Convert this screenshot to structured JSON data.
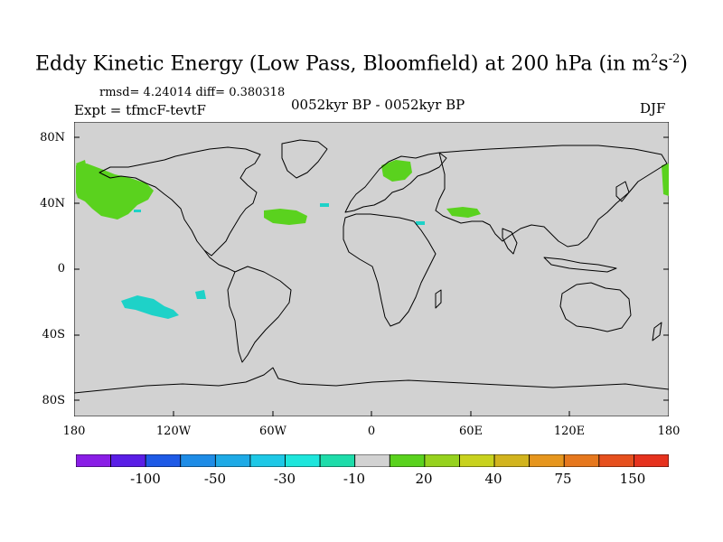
{
  "title": "Eddy Kinetic Energy (Low Pass, Bloomfield) at 200 hPa (in m",
  "title_sup1": "2",
  "title_mid": "s",
  "title_sup2": "-2",
  "title_end": ")",
  "stats": "rmsd= 4.24014  diff= 0.380318",
  "experiment": "Expt = tfmcF-tevtF",
  "period": "0052kyr BP - 0052kyr BP",
  "season": "DJF",
  "lat_labels": [
    "80N",
    "40N",
    "0",
    "40S",
    "80S"
  ],
  "lon_labels": [
    "180",
    "120W",
    "60W",
    "0",
    "60E",
    "120E",
    "180"
  ],
  "colorbar": {
    "colors": [
      "#8a1ee6",
      "#5a1ee6",
      "#1e5ae6",
      "#1e8ce6",
      "#1eaae6",
      "#1ec8e6",
      "#1ee6dc",
      "#1edcaa",
      "#d2d2d2",
      "#5ad21e",
      "#96d21e",
      "#c8d21e",
      "#d2b41e",
      "#e6961e",
      "#e6781e",
      "#e6501e",
      "#e6321e"
    ],
    "labels": [
      "-100",
      "-50",
      "-30",
      "-10",
      "20",
      "40",
      "75",
      "150"
    ]
  },
  "colors": {
    "background": "#d2d2d2",
    "positive": "#5ad21e",
    "negative": "#1ed2c8",
    "coast": "#000000"
  }
}
